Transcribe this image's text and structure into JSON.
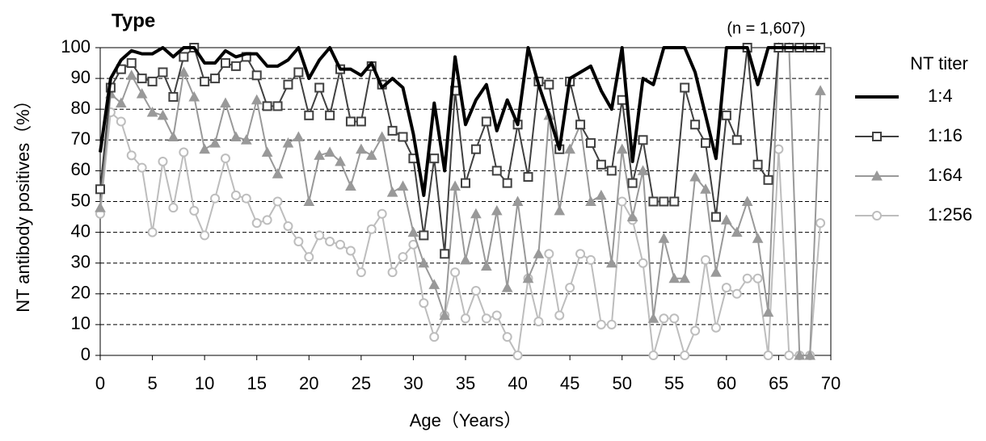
{
  "chart_data": {
    "type": "line",
    "title": "Type",
    "subtitle": "(n = 1,607)",
    "x_label": "Age（Years）",
    "y_label": "NT antibody positives（%）",
    "legend_title": "NT titer",
    "legend_position": "right",
    "grid": true,
    "xlim": [
      0,
      70
    ],
    "xticks": [
      0,
      5,
      10,
      15,
      20,
      25,
      30,
      35,
      40,
      45,
      50,
      55,
      60,
      65,
      70
    ],
    "ylim": [
      0,
      100
    ],
    "yticks": [
      0,
      10,
      20,
      30,
      40,
      50,
      60,
      70,
      80,
      90,
      100
    ],
    "x": [
      0,
      1,
      2,
      3,
      4,
      5,
      6,
      7,
      8,
      9,
      10,
      11,
      12,
      13,
      14,
      15,
      16,
      17,
      18,
      19,
      20,
      21,
      22,
      23,
      24,
      25,
      26,
      27,
      28,
      29,
      30,
      31,
      32,
      33,
      34,
      35,
      36,
      37,
      38,
      39,
      40,
      41,
      42,
      43,
      44,
      45,
      46,
      47,
      48,
      49,
      50,
      51,
      52,
      53,
      54,
      55,
      56,
      57,
      58,
      59,
      60,
      61,
      62,
      63,
      64,
      65,
      66,
      67,
      68,
      69
    ],
    "series": [
      {
        "name": "1:4",
        "color": "#000000",
        "marker": "none",
        "values": [
          66,
          90,
          96,
          99,
          98,
          98,
          100,
          97,
          100,
          100,
          95,
          95,
          99,
          97,
          98,
          98,
          94,
          94,
          96,
          100,
          90,
          96,
          100,
          93,
          93,
          91,
          95,
          87,
          90,
          87,
          72,
          52,
          82,
          60,
          97,
          75,
          83,
          88,
          73,
          83,
          75,
          100,
          88,
          78,
          67,
          90,
          92,
          94,
          86,
          80,
          100,
          63,
          90,
          88,
          100,
          100,
          100,
          92,
          78,
          64,
          100,
          100,
          100,
          88,
          100,
          100,
          100,
          100,
          100,
          100
        ]
      },
      {
        "name": "1:16",
        "color": "#404040",
        "marker": "square",
        "values": [
          54,
          87,
          93,
          95,
          90,
          89,
          92,
          84,
          97,
          100,
          89,
          90,
          95,
          94,
          97,
          91,
          81,
          81,
          88,
          92,
          78,
          87,
          78,
          93,
          76,
          76,
          94,
          88,
          73,
          71,
          64,
          39,
          64,
          33,
          86,
          56,
          67,
          76,
          60,
          56,
          75,
          58,
          89,
          88,
          67,
          89,
          75,
          69,
          62,
          60,
          83,
          56,
          70,
          50,
          50,
          50,
          87,
          75,
          69,
          45,
          78,
          70,
          100,
          62,
          57,
          100,
          100,
          100,
          100,
          100
        ]
      },
      {
        "name": "1:64",
        "color": "#999999",
        "marker": "triangle",
        "values": [
          48,
          85,
          82,
          91,
          85,
          79,
          78,
          71,
          92,
          84,
          67,
          69,
          82,
          71,
          70,
          83,
          66,
          59,
          69,
          71,
          50,
          65,
          66,
          63,
          55,
          67,
          65,
          71,
          53,
          55,
          40,
          30,
          23,
          13,
          55,
          31,
          46,
          29,
          47,
          22,
          50,
          25,
          33,
          78,
          47,
          67,
          75,
          50,
          52,
          30,
          67,
          45,
          60,
          12,
          38,
          25,
          25,
          58,
          54,
          27,
          44,
          40,
          50,
          38,
          14,
          100,
          100,
          0,
          0,
          86
        ]
      },
      {
        "name": "1:256",
        "color": "#bdbdbd",
        "marker": "circle",
        "values": [
          46,
          79,
          76,
          65,
          61,
          40,
          63,
          48,
          66,
          47,
          39,
          51,
          64,
          52,
          51,
          43,
          44,
          50,
          42,
          37,
          32,
          39,
          37,
          36,
          34,
          27,
          41,
          46,
          27,
          32,
          36,
          17,
          6,
          13,
          27,
          12,
          21,
          12,
          13,
          6,
          0,
          25,
          11,
          33,
          13,
          22,
          33,
          31,
          10,
          10,
          50,
          44,
          30,
          0,
          12,
          12,
          0,
          8,
          31,
          9,
          22,
          20,
          25,
          25,
          0,
          67,
          0,
          0,
          0,
          43
        ]
      }
    ]
  }
}
